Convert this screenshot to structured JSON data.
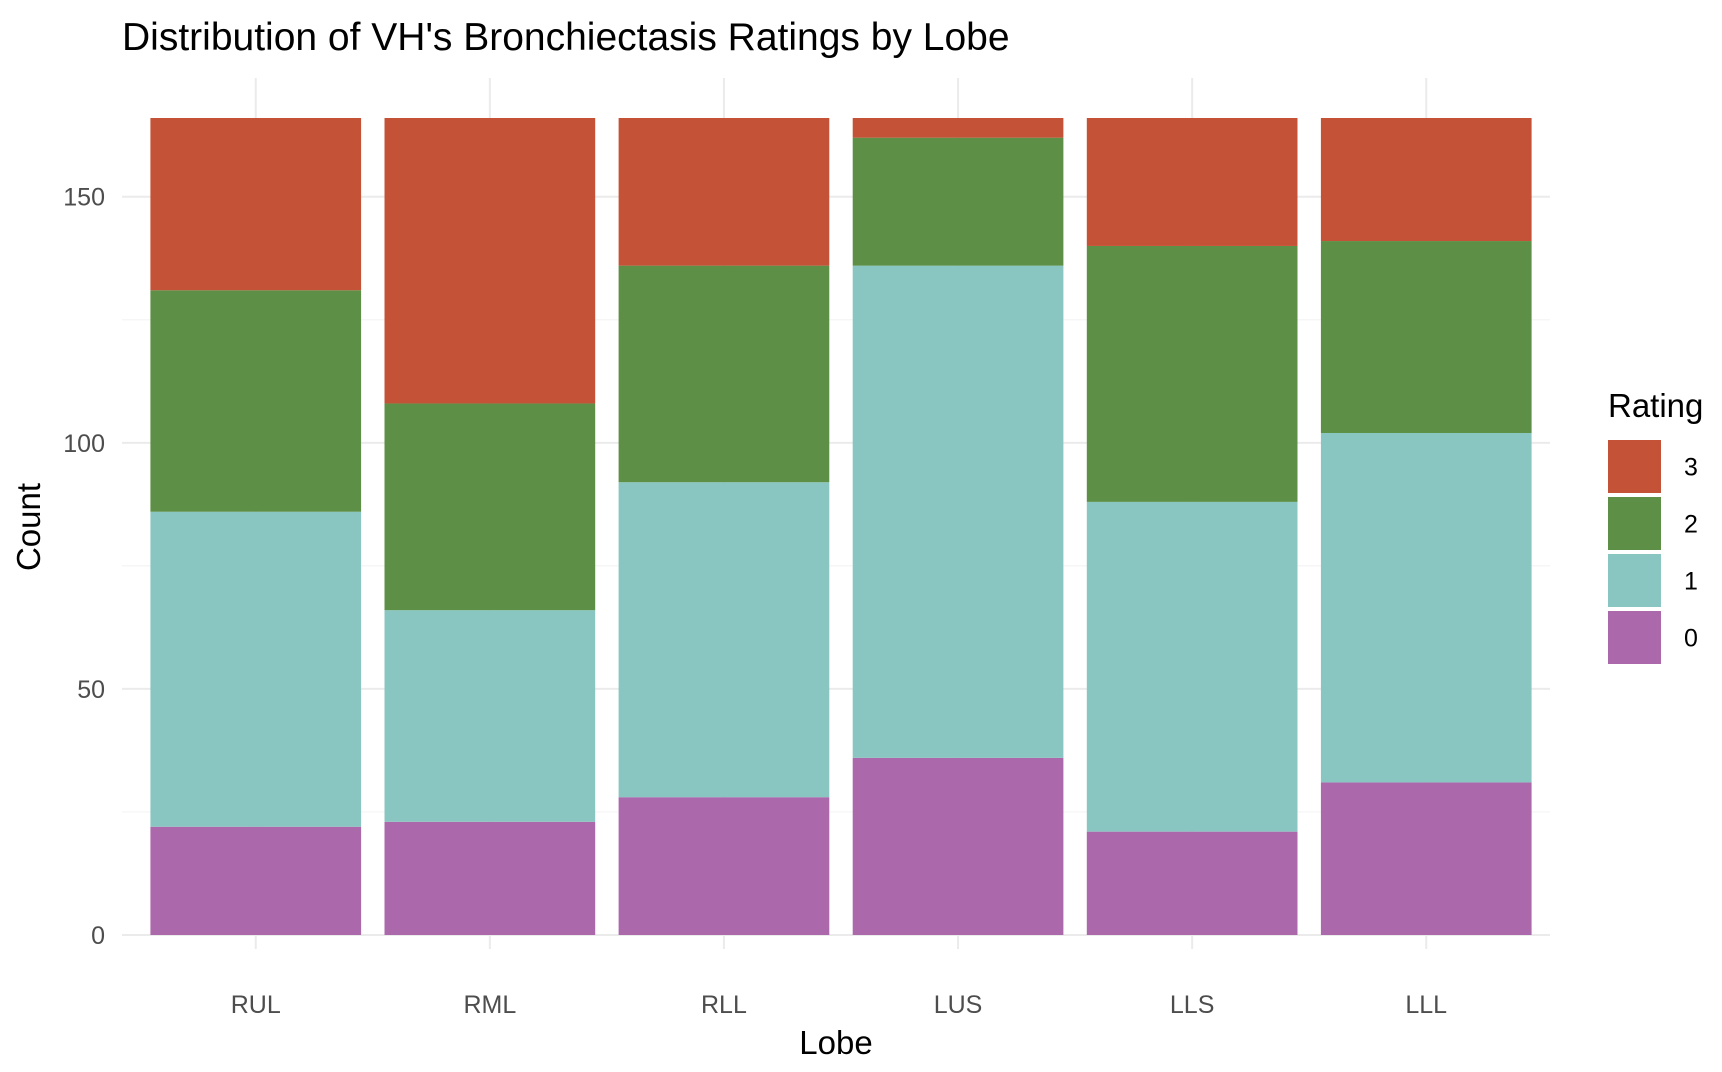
{
  "chart_data": {
    "type": "bar",
    "stacked": true,
    "title": "Distribution of VH's Bronchiectasis Ratings by Lobe",
    "xlabel": "Lobe",
    "ylabel": "Count",
    "categories": [
      "RUL",
      "RML",
      "RLL",
      "LUS",
      "LLS",
      "LLL"
    ],
    "ylim": [
      0,
      166
    ],
    "yticks": [
      0,
      50,
      100,
      150
    ],
    "grid": true,
    "legend": {
      "title": "Rating",
      "position": "right"
    },
    "series": [
      {
        "name": "0",
        "color": "#ab69ab",
        "values": [
          22,
          23,
          28,
          36,
          21,
          31
        ]
      },
      {
        "name": "1",
        "color": "#89c6c1",
        "values": [
          64,
          43,
          64,
          100,
          67,
          71
        ]
      },
      {
        "name": "2",
        "color": "#5d8f46",
        "values": [
          45,
          42,
          44,
          26,
          52,
          39
        ]
      },
      {
        "name": "3",
        "color": "#c45236",
        "values": [
          35,
          58,
          30,
          4,
          26,
          25
        ]
      }
    ]
  }
}
